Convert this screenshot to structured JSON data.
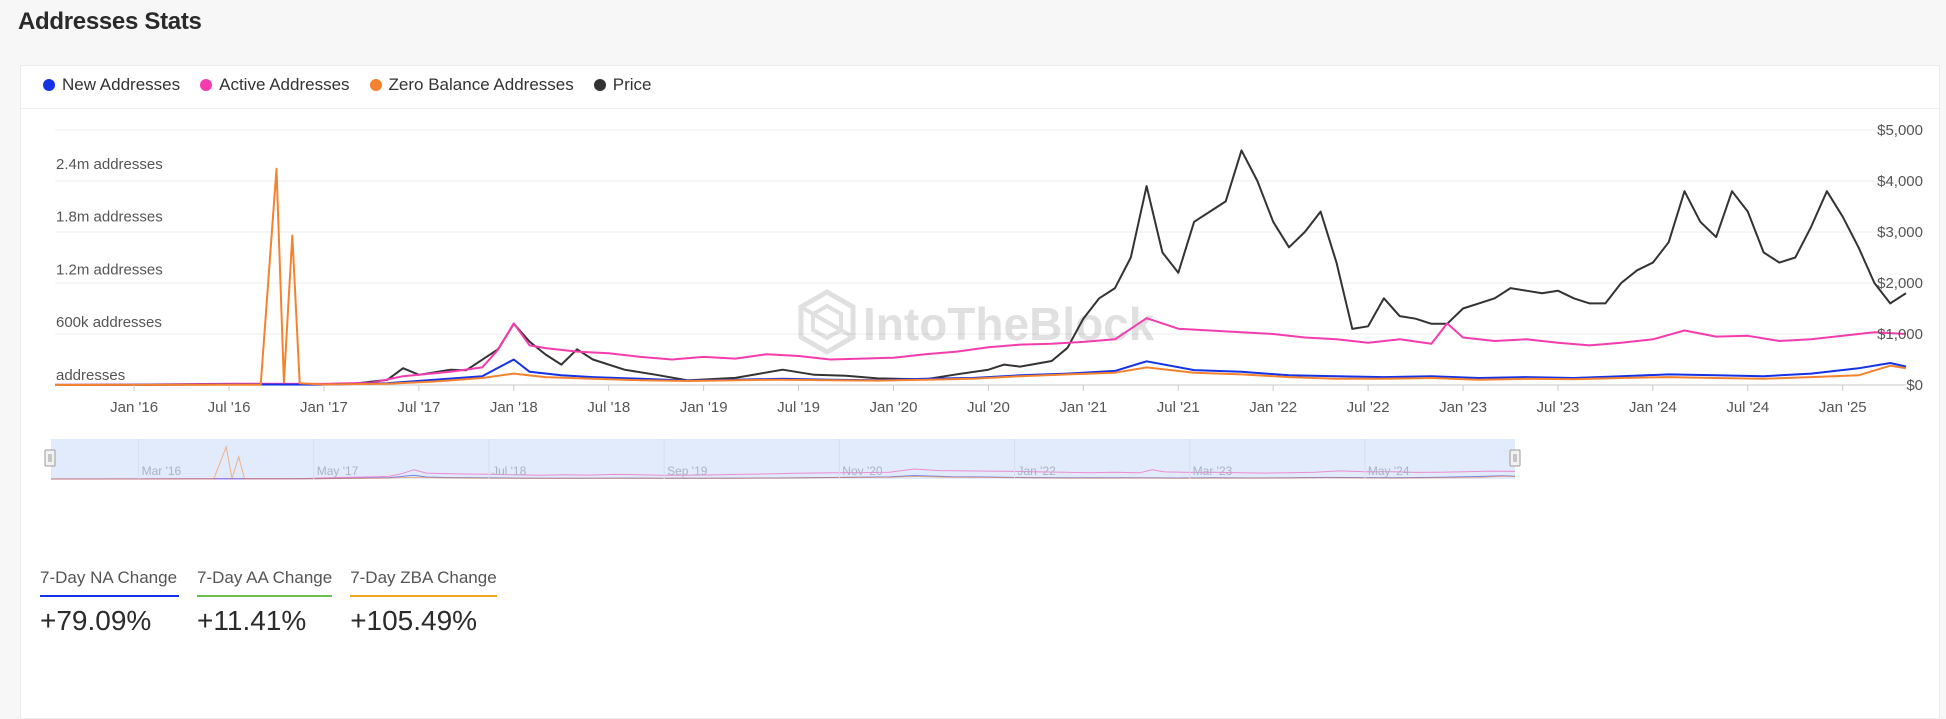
{
  "page": {
    "title": "Addresses Stats"
  },
  "legend": [
    {
      "label": "New Addresses",
      "color": "#1432e6"
    },
    {
      "label": "Active Addresses",
      "color": "#f53cae"
    },
    {
      "label": "Zero Balance Addresses",
      "color": "#f5822e"
    },
    {
      "label": "Price",
      "color": "#333333"
    }
  ],
  "watermark": "IntoTheBlock",
  "chart_data": {
    "type": "line",
    "x_axis": {
      "tick_labels": [
        "Jan '16",
        "Jul '16",
        "Jan '17",
        "Jul '17",
        "Jan '18",
        "Jul '18",
        "Jan '19",
        "Jul '19",
        "Jan '20",
        "Jul '20",
        "Jan '21",
        "Jul '21",
        "Jan '22",
        "Jul '22",
        "Jan '23",
        "Jul '23",
        "Jan '24",
        "Jul '24",
        "Jan '25"
      ],
      "range": [
        "2015-08",
        "2025-05"
      ]
    },
    "y_left": {
      "tick_labels": [
        "addresses",
        "600k addresses",
        "1.2m addresses",
        "1.8m addresses",
        "2.4m addresses"
      ],
      "ticks": [
        0,
        600000,
        1200000,
        1800000,
        2400000
      ],
      "range": [
        0,
        2900000
      ]
    },
    "y_right": {
      "tick_labels": [
        "$0",
        "$1,000",
        "$2,000",
        "$3,000",
        "$4,000",
        "$5,000"
      ],
      "ticks": [
        0,
        1000,
        2000,
        3000,
        4000,
        5000
      ],
      "range": [
        0,
        5000
      ]
    },
    "grid": true,
    "series": [
      {
        "name": "Price",
        "axis": "right",
        "color": "#333333",
        "points": [
          [
            "2015-08",
            1
          ],
          [
            "2016-01",
            1
          ],
          [
            "2016-07",
            11
          ],
          [
            "2017-01",
            9
          ],
          [
            "2017-03",
            30
          ],
          [
            "2017-05",
            100
          ],
          [
            "2017-06",
            330
          ],
          [
            "2017-07",
            200
          ],
          [
            "2017-09",
            300
          ],
          [
            "2017-10",
            290
          ],
          [
            "2017-12",
            700
          ],
          [
            "2018-01",
            1200
          ],
          [
            "2018-02",
            850
          ],
          [
            "2018-03",
            600
          ],
          [
            "2018-04",
            400
          ],
          [
            "2018-05",
            700
          ],
          [
            "2018-06",
            500
          ],
          [
            "2018-08",
            300
          ],
          [
            "2018-10",
            200
          ],
          [
            "2018-12",
            90
          ],
          [
            "2019-03",
            140
          ],
          [
            "2019-06",
            300
          ],
          [
            "2019-08",
            200
          ],
          [
            "2019-10",
            180
          ],
          [
            "2019-12",
            130
          ],
          [
            "2020-03",
            110
          ],
          [
            "2020-05",
            210
          ],
          [
            "2020-07",
            300
          ],
          [
            "2020-08",
            400
          ],
          [
            "2020-09",
            360
          ],
          [
            "2020-11",
            470
          ],
          [
            "2020-12",
            730
          ],
          [
            "2021-01",
            1300
          ],
          [
            "2021-02",
            1700
          ],
          [
            "2021-03",
            1900
          ],
          [
            "2021-04",
            2500
          ],
          [
            "2021-05",
            3900
          ],
          [
            "2021-06",
            2600
          ],
          [
            "2021-07",
            2200
          ],
          [
            "2021-08",
            3200
          ],
          [
            "2021-09",
            3400
          ],
          [
            "2021-10",
            3600
          ],
          [
            "2021-11",
            4600
          ],
          [
            "2021-12",
            4000
          ],
          [
            "2022-01",
            3200
          ],
          [
            "2022-02",
            2700
          ],
          [
            "2022-03",
            3000
          ],
          [
            "2022-04",
            3400
          ],
          [
            "2022-05",
            2400
          ],
          [
            "2022-06",
            1100
          ],
          [
            "2022-07",
            1150
          ],
          [
            "2022-08",
            1700
          ],
          [
            "2022-09",
            1350
          ],
          [
            "2022-10",
            1300
          ],
          [
            "2022-11",
            1200
          ],
          [
            "2022-12",
            1200
          ],
          [
            "2023-01",
            1500
          ],
          [
            "2023-02",
            1600
          ],
          [
            "2023-03",
            1700
          ],
          [
            "2023-04",
            1900
          ],
          [
            "2023-05",
            1850
          ],
          [
            "2023-06",
            1800
          ],
          [
            "2023-07",
            1850
          ],
          [
            "2023-08",
            1700
          ],
          [
            "2023-09",
            1600
          ],
          [
            "2023-10",
            1600
          ],
          [
            "2023-11",
            2000
          ],
          [
            "2023-12",
            2250
          ],
          [
            "2024-01",
            2400
          ],
          [
            "2024-02",
            2800
          ],
          [
            "2024-03",
            3800
          ],
          [
            "2024-04",
            3200
          ],
          [
            "2024-05",
            2900
          ],
          [
            "2024-06",
            3800
          ],
          [
            "2024-07",
            3400
          ],
          [
            "2024-08",
            2600
          ],
          [
            "2024-09",
            2400
          ],
          [
            "2024-10",
            2500
          ],
          [
            "2024-11",
            3100
          ],
          [
            "2024-12",
            3800
          ],
          [
            "2025-01",
            3300
          ],
          [
            "2025-02",
            2700
          ],
          [
            "2025-03",
            2000
          ],
          [
            "2025-04",
            1600
          ],
          [
            "2025-05",
            1800
          ]
        ]
      },
      {
        "name": "Active Addresses",
        "axis": "left",
        "color": "#f53cae",
        "points": [
          [
            "2015-08",
            1000
          ],
          [
            "2016-01",
            5000
          ],
          [
            "2016-07",
            15000
          ],
          [
            "2017-01",
            12000
          ],
          [
            "2017-04",
            25000
          ],
          [
            "2017-06",
            100000
          ],
          [
            "2017-09",
            150000
          ],
          [
            "2017-11",
            200000
          ],
          [
            "2017-12",
            400000
          ],
          [
            "2018-01",
            700000
          ],
          [
            "2018-02",
            450000
          ],
          [
            "2018-03",
            420000
          ],
          [
            "2018-05",
            380000
          ],
          [
            "2018-07",
            360000
          ],
          [
            "2018-09",
            320000
          ],
          [
            "2018-11",
            290000
          ],
          [
            "2019-01",
            320000
          ],
          [
            "2019-03",
            300000
          ],
          [
            "2019-05",
            350000
          ],
          [
            "2019-07",
            330000
          ],
          [
            "2019-09",
            290000
          ],
          [
            "2019-11",
            300000
          ],
          [
            "2020-01",
            310000
          ],
          [
            "2020-03",
            350000
          ],
          [
            "2020-05",
            380000
          ],
          [
            "2020-07",
            430000
          ],
          [
            "2020-09",
            460000
          ],
          [
            "2020-11",
            470000
          ],
          [
            "2021-01",
            490000
          ],
          [
            "2021-03",
            520000
          ],
          [
            "2021-05",
            760000
          ],
          [
            "2021-07",
            640000
          ],
          [
            "2021-09",
            620000
          ],
          [
            "2021-11",
            600000
          ],
          [
            "2022-01",
            580000
          ],
          [
            "2022-03",
            540000
          ],
          [
            "2022-05",
            520000
          ],
          [
            "2022-07",
            480000
          ],
          [
            "2022-09",
            520000
          ],
          [
            "2022-11",
            470000
          ],
          [
            "2022-12",
            700000
          ],
          [
            "2023-01",
            540000
          ],
          [
            "2023-03",
            500000
          ],
          [
            "2023-05",
            520000
          ],
          [
            "2023-07",
            480000
          ],
          [
            "2023-09",
            450000
          ],
          [
            "2023-11",
            480000
          ],
          [
            "2024-01",
            520000
          ],
          [
            "2024-03",
            620000
          ],
          [
            "2024-05",
            550000
          ],
          [
            "2024-07",
            560000
          ],
          [
            "2024-09",
            500000
          ],
          [
            "2024-11",
            520000
          ],
          [
            "2025-01",
            560000
          ],
          [
            "2025-03",
            600000
          ],
          [
            "2025-05",
            580000
          ]
        ]
      },
      {
        "name": "New Addresses",
        "axis": "left",
        "color": "#1432e6",
        "points": [
          [
            "2015-08",
            500
          ],
          [
            "2016-01",
            2000
          ],
          [
            "2016-07",
            6000
          ],
          [
            "2017-01",
            5000
          ],
          [
            "2017-05",
            20000
          ],
          [
            "2017-08",
            60000
          ],
          [
            "2017-11",
            100000
          ],
          [
            "2018-01",
            290000
          ],
          [
            "2018-02",
            150000
          ],
          [
            "2018-04",
            110000
          ],
          [
            "2018-06",
            90000
          ],
          [
            "2018-09",
            70000
          ],
          [
            "2018-12",
            50000
          ],
          [
            "2019-03",
            60000
          ],
          [
            "2019-06",
            70000
          ],
          [
            "2019-09",
            60000
          ],
          [
            "2019-12",
            55000
          ],
          [
            "2020-03",
            70000
          ],
          [
            "2020-06",
            80000
          ],
          [
            "2020-09",
            110000
          ],
          [
            "2020-12",
            130000
          ],
          [
            "2021-03",
            160000
          ],
          [
            "2021-05",
            270000
          ],
          [
            "2021-08",
            170000
          ],
          [
            "2021-11",
            150000
          ],
          [
            "2022-02",
            110000
          ],
          [
            "2022-05",
            100000
          ],
          [
            "2022-08",
            90000
          ],
          [
            "2022-11",
            100000
          ],
          [
            "2023-02",
            80000
          ],
          [
            "2023-05",
            90000
          ],
          [
            "2023-08",
            80000
          ],
          [
            "2023-11",
            100000
          ],
          [
            "2024-02",
            120000
          ],
          [
            "2024-05",
            110000
          ],
          [
            "2024-08",
            100000
          ],
          [
            "2024-11",
            130000
          ],
          [
            "2025-02",
            190000
          ],
          [
            "2025-04",
            250000
          ],
          [
            "2025-05",
            210000
          ]
        ]
      },
      {
        "name": "Zero Balance Addresses",
        "axis": "left",
        "color": "#f5822e",
        "points": [
          [
            "2015-08",
            300
          ],
          [
            "2016-01",
            1000
          ],
          [
            "2016-09",
            2000
          ],
          [
            "2016-10-01",
            2460000
          ],
          [
            "2016-10-15",
            30000
          ],
          [
            "2016-11-01",
            1700000
          ],
          [
            "2016-11-15",
            20000
          ],
          [
            "2017-01",
            6000
          ],
          [
            "2017-05",
            15000
          ],
          [
            "2017-08",
            40000
          ],
          [
            "2017-11",
            80000
          ],
          [
            "2018-01",
            130000
          ],
          [
            "2018-03",
            90000
          ],
          [
            "2018-06",
            70000
          ],
          [
            "2018-09",
            55000
          ],
          [
            "2018-12",
            45000
          ],
          [
            "2019-03",
            55000
          ],
          [
            "2019-06",
            60000
          ],
          [
            "2019-09",
            55000
          ],
          [
            "2019-12",
            50000
          ],
          [
            "2020-03",
            60000
          ],
          [
            "2020-06",
            70000
          ],
          [
            "2020-09",
            100000
          ],
          [
            "2020-12",
            120000
          ],
          [
            "2021-03",
            140000
          ],
          [
            "2021-05",
            200000
          ],
          [
            "2021-08",
            140000
          ],
          [
            "2021-11",
            120000
          ],
          [
            "2022-02",
            90000
          ],
          [
            "2022-05",
            70000
          ],
          [
            "2022-08",
            70000
          ],
          [
            "2022-11",
            80000
          ],
          [
            "2023-02",
            60000
          ],
          [
            "2023-05",
            70000
          ],
          [
            "2023-08",
            65000
          ],
          [
            "2023-11",
            80000
          ],
          [
            "2024-02",
            90000
          ],
          [
            "2024-05",
            80000
          ],
          [
            "2024-08",
            70000
          ],
          [
            "2024-11",
            90000
          ],
          [
            "2025-02",
            110000
          ],
          [
            "2025-04",
            220000
          ],
          [
            "2025-05",
            190000
          ]
        ]
      }
    ]
  },
  "navigator": {
    "tick_labels": [
      "Mar '16",
      "May '17",
      "Jul '18",
      "Sep '19",
      "Nov '20",
      "Jan '22",
      "Mar '23",
      "May '24"
    ]
  },
  "stats": [
    {
      "label": "7-Day NA Change",
      "value": "+79.09%",
      "color": "#1432e6"
    },
    {
      "label": "7-Day AA Change",
      "value": "+11.41%",
      "color": "#6cc04a"
    },
    {
      "label": "7-Day ZBA Change",
      "value": "+105.49%",
      "color": "#f5a623"
    }
  ]
}
